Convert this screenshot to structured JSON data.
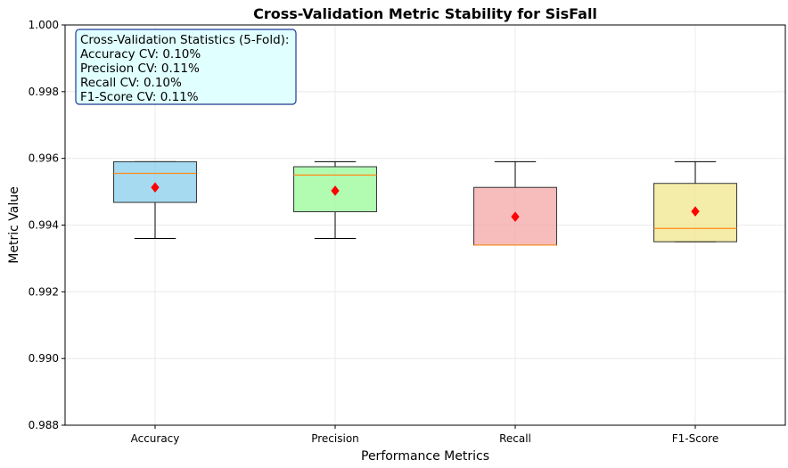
{
  "chart_data": {
    "type": "box",
    "title": "Cross-Validation Metric Stability for SisFall",
    "xlabel": "Performance Metrics",
    "ylabel": "Metric Value",
    "ylim": [
      0.988,
      1.0
    ],
    "yticks": [
      "0.988",
      "0.990",
      "0.992",
      "0.994",
      "0.996",
      "0.998",
      "1.000"
    ],
    "grid": true,
    "categories": [
      "Accuracy",
      "Precision",
      "Recall",
      "F1-Score"
    ],
    "boxes": [
      {
        "category": "Accuracy",
        "whisker_low": 0.9936,
        "q1": 0.99468,
        "median": 0.99555,
        "q3": 0.9959,
        "whisker_high": 0.9959,
        "mean": 0.99513,
        "color": "#87CEEB"
      },
      {
        "category": "Precision",
        "whisker_low": 0.9936,
        "q1": 0.9944,
        "median": 0.9955,
        "q3": 0.99575,
        "whisker_high": 0.9959,
        "mean": 0.99503,
        "color": "#98FB98"
      },
      {
        "category": "Recall",
        "whisker_low": 0.9934,
        "q1": 0.9934,
        "median": 0.9934,
        "q3": 0.99513,
        "whisker_high": 0.9959,
        "mean": 0.99425,
        "color": "#F4A6A6"
      },
      {
        "category": "F1-Score",
        "whisker_low": 0.9935,
        "q1": 0.9935,
        "median": 0.9939,
        "q3": 0.99525,
        "whisker_high": 0.9959,
        "mean": 0.99441,
        "color": "#F0E68C"
      }
    ],
    "median_color": "#FF8C1A",
    "mean_marker_color": "#FF0000",
    "stats_box": {
      "lines": [
        "Cross-Validation Statistics (5-Fold):",
        "Accuracy CV: 0.10%",
        "Precision CV: 0.11%",
        "Recall CV: 0.10%",
        "F1-Score CV: 0.11%"
      ],
      "background": "#E0FFFF",
      "border": "#1F3A93",
      "placement": "top-left"
    }
  }
}
